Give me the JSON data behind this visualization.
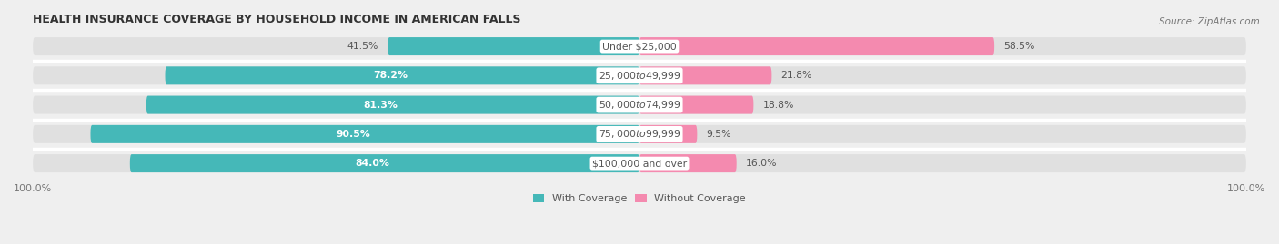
{
  "title": "HEALTH INSURANCE COVERAGE BY HOUSEHOLD INCOME IN AMERICAN FALLS",
  "source": "Source: ZipAtlas.com",
  "categories": [
    "Under $25,000",
    "$25,000 to $49,999",
    "$50,000 to $74,999",
    "$75,000 to $99,999",
    "$100,000 and over"
  ],
  "with_coverage": [
    41.5,
    78.2,
    81.3,
    90.5,
    84.0
  ],
  "without_coverage": [
    58.5,
    21.8,
    18.8,
    9.5,
    16.0
  ],
  "color_with": "#45b8b8",
  "color_without": "#f48aaf",
  "bar_height": 0.62,
  "background_color": "#efefef",
  "bar_bg_color": "#e0e0e0",
  "title_fontsize": 9.0,
  "source_fontsize": 7.5,
  "label_fontsize": 7.8,
  "pct_fontsize": 7.8,
  "tick_fontsize": 8.0,
  "legend_fontsize": 8.0
}
